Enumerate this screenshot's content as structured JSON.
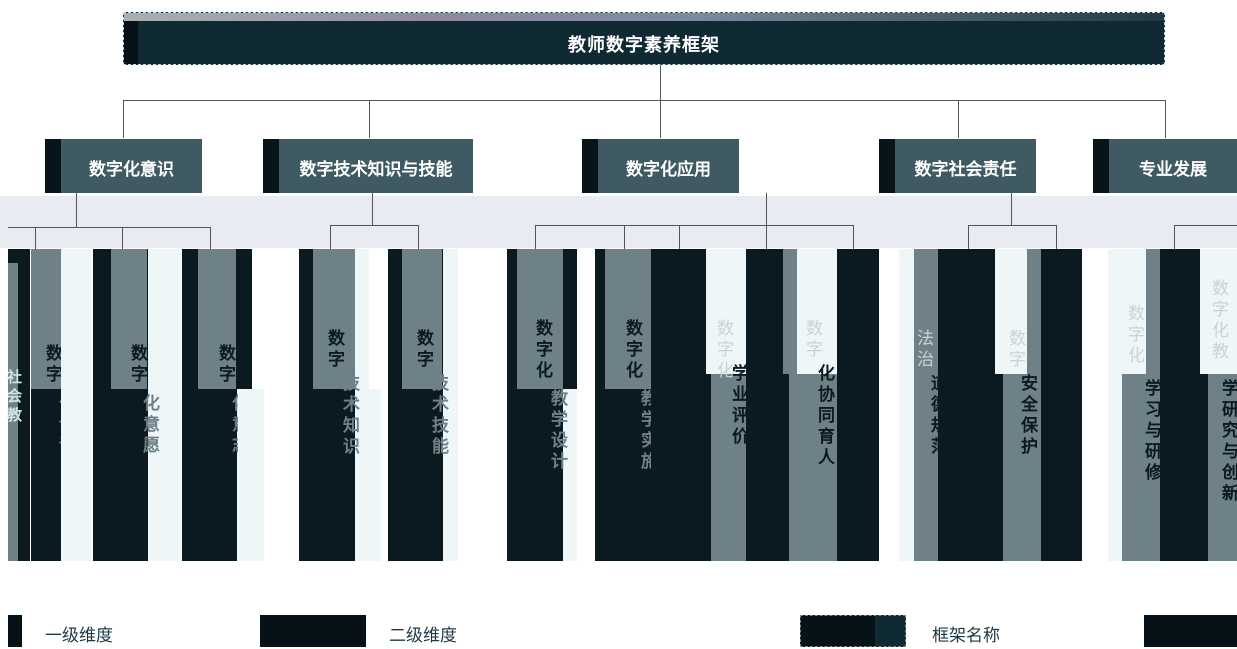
{
  "framework": {
    "title": "教师数字素养框架"
  },
  "dimensions": [
    {
      "label": "数字化意识"
    },
    {
      "label": "数字技术知识与技能"
    },
    {
      "label": "数字化应用"
    },
    {
      "label": "数字社会责任"
    },
    {
      "label": "专业发展"
    }
  ],
  "sub_dimensions": {
    "d1": [
      "数字化认识",
      "数字化意愿",
      "数字化意志"
    ],
    "d2": [
      "数字技术知识",
      "数字技术技能"
    ],
    "d3": [
      "数字化教学设计",
      "数字化教学实施",
      "数字化学业评价",
      "数字化协同育人"
    ],
    "d4": [
      "法治道德规范",
      "数字安全保护"
    ],
    "d5": [
      "数字化学习与研修",
      "数字化教学研究与创新"
    ]
  },
  "visible_fragments": {
    "c0": "社会教",
    "c1_top": "数字",
    "c1_bot": "化认识",
    "c2_top": "数字",
    "c2_bot": "化意愿",
    "c3_top": "数字",
    "c3_bot": "化意志",
    "c4_top": "数字",
    "c4_bot": "技术知识",
    "c5_top": "数字",
    "c5_bot": "技术技能",
    "c6_top": "数字化",
    "c6_bot": "教学设计",
    "c7_top": "数字化",
    "c7_bot": "教学实施",
    "c8_top": "数字化",
    "c8_bot": "学业评价",
    "c9_top": "数字",
    "c9_bot": "化协同育人",
    "c10_top": "法治",
    "c10_bot": "道德规范",
    "c11_top": "数字",
    "c11_bot": "安全保护",
    "c12_top": "数字化",
    "c12_bot": "学习与研修",
    "c13_top": "数字化教",
    "c13_bot": "学研究与创新"
  },
  "legend": {
    "level1": "一级维度",
    "level2": "二级维度",
    "frame_name": "框架名称"
  },
  "colors": {
    "dark": "#061218",
    "title_bg": "#0f2a33",
    "grey": "#6d8187",
    "light": "#eef6f7"
  }
}
